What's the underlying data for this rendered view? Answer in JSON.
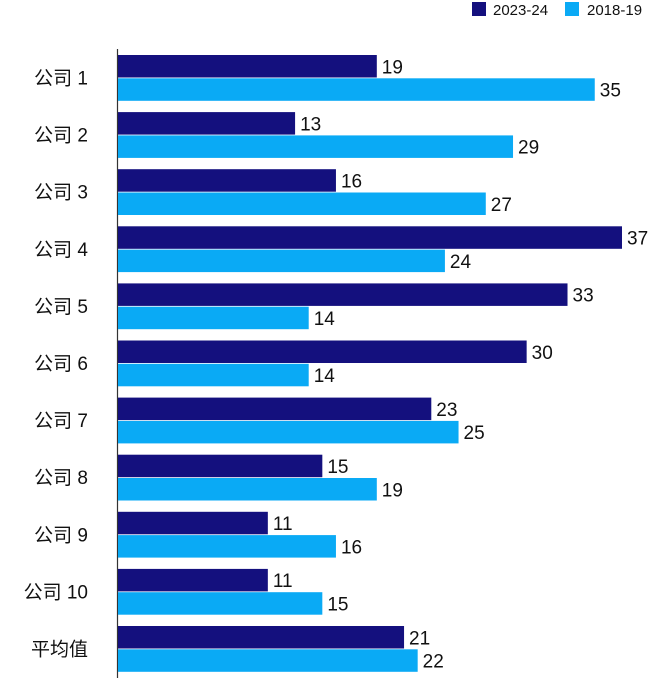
{
  "chart_data": {
    "type": "bar",
    "orientation": "horizontal",
    "categories": [
      "公司 1",
      "公司 2",
      "公司 3",
      "公司 4",
      "公司 5",
      "公司 6",
      "公司 7",
      "公司 8",
      "公司 9",
      "公司 10",
      "平均值"
    ],
    "series": [
      {
        "name": "2023-24",
        "color": "#14107e",
        "values": [
          19,
          13,
          16,
          37,
          33,
          30,
          23,
          15,
          11,
          11,
          21
        ]
      },
      {
        "name": "2018-19",
        "color": "#0aaaf5",
        "values": [
          35,
          29,
          27,
          24,
          14,
          14,
          25,
          19,
          16,
          15,
          22
        ]
      }
    ],
    "xlim": [
      0,
      37
    ],
    "grid": false,
    "data_labels": true,
    "legend_position": "top-right"
  }
}
